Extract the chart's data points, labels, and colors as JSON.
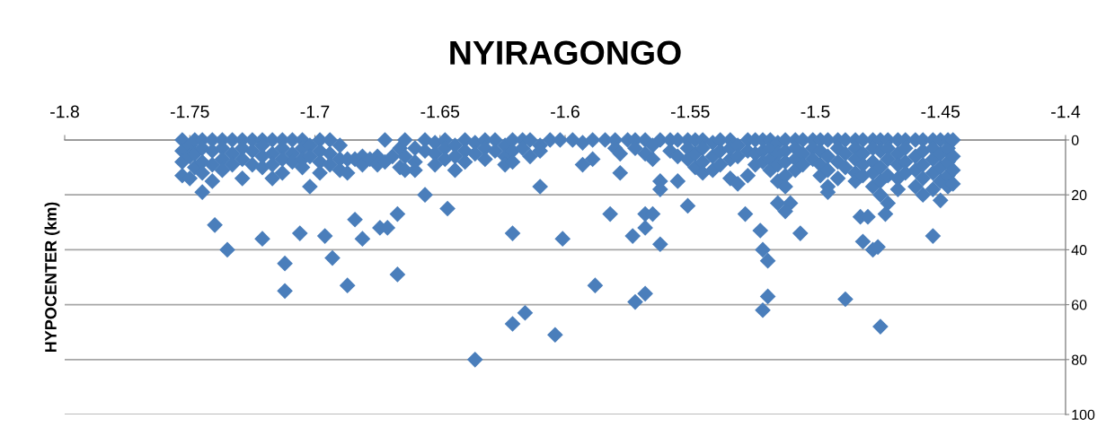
{
  "chart_data": {
    "type": "scatter",
    "title": "NYIRAGONGO",
    "ylabel": "HYPOCENTER (km)",
    "xlim": [
      -1.8,
      -1.4
    ],
    "xticks": [
      -1.8,
      -1.75,
      -1.7,
      -1.65,
      -1.6,
      -1.55,
      -1.5,
      -1.45,
      -1.4
    ],
    "ylim": [
      100,
      0
    ],
    "yticks": [
      0,
      20,
      40,
      60,
      80,
      100
    ],
    "grid": "y",
    "marker": "diamond",
    "x": [
      -1.753,
      -1.753,
      -1.753,
      -1.753,
      -1.75,
      -1.75,
      -1.75,
      -1.748,
      -1.748,
      -1.748,
      -1.745,
      -1.745,
      -1.745,
      -1.745,
      -1.745,
      -1.741,
      -1.741,
      -1.741,
      -1.741,
      -1.737,
      -1.737,
      -1.737,
      -1.737,
      -1.733,
      -1.733,
      -1.733,
      -1.729,
      -1.729,
      -1.729,
      -1.729,
      -1.725,
      -1.725,
      -1.725,
      -1.721,
      -1.721,
      -1.721,
      -1.721,
      -1.717,
      -1.717,
      -1.717,
      -1.717,
      -1.713,
      -1.713,
      -1.713,
      -1.713,
      -1.709,
      -1.709,
      -1.709,
      -1.705,
      -1.705,
      -1.705,
      -1.705,
      -1.702,
      -1.702,
      -1.702,
      -1.698,
      -1.698,
      -1.698,
      -1.698,
      -1.694,
      -1.694,
      -1.694,
      -1.69,
      -1.69,
      -1.69,
      -1.687,
      -1.687,
      -1.684,
      -1.681,
      -1.681,
      -1.678,
      -1.675,
      -1.675,
      -1.672,
      -1.672,
      -1.669,
      -1.666,
      -1.666,
      -1.664,
      -1.664,
      -1.664,
      -1.66,
      -1.66,
      -1.66,
      -1.656,
      -1.656,
      -1.656,
      -1.652,
      -1.652,
      -1.652,
      -1.648,
      -1.648,
      -1.648,
      -1.644,
      -1.644,
      -1.644,
      -1.64,
      -1.64,
      -1.64,
      -1.636,
      -1.636,
      -1.632,
      -1.632,
      -1.632,
      -1.628,
      -1.628,
      -1.624,
      -1.624,
      -1.624,
      -1.621,
      -1.621,
      -1.621,
      -1.617,
      -1.617,
      -1.614,
      -1.614,
      -1.61,
      -1.61,
      -1.61,
      -1.606,
      -1.602,
      -1.597,
      -1.593,
      -1.593,
      -1.589,
      -1.589,
      -1.584,
      -1.58,
      -1.58,
      -1.578,
      -1.578,
      -1.575,
      -1.572,
      -1.572,
      -1.568,
      -1.568,
      -1.565,
      -1.565,
      -1.562,
      -1.562,
      -1.562,
      -1.558,
      -1.558,
      -1.555,
      -1.555,
      -1.555,
      -1.551,
      -1.551,
      -1.551,
      -1.548,
      -1.548,
      -1.548,
      -1.545,
      -1.545,
      -1.545,
      -1.545,
      -1.541,
      -1.541,
      -1.541,
      -1.538,
      -1.538,
      -1.538,
      -1.534,
      -1.534,
      -1.534,
      -1.534,
      -1.531,
      -1.531,
      -1.531,
      -1.527,
      -1.527,
      -1.527,
      -1.524,
      -1.524,
      -1.524,
      -1.521,
      -1.521,
      -1.521,
      -1.518,
      -1.518,
      -1.518,
      -1.518,
      -1.515,
      -1.515,
      -1.515,
      -1.515,
      -1.512,
      -1.512,
      -1.512,
      -1.512,
      -1.512,
      -1.508,
      -1.508,
      -1.508,
      -1.508,
      -1.505,
      -1.505,
      -1.505,
      -1.501,
      -1.501,
      -1.501,
      -1.498,
      -1.498,
      -1.498,
      -1.498,
      -1.495,
      -1.495,
      -1.495,
      -1.495,
      -1.495,
      -1.491,
      -1.491,
      -1.491,
      -1.491,
      -1.488,
      -1.488,
      -1.488,
      -1.484,
      -1.484,
      -1.484,
      -1.484,
      -1.484,
      -1.481,
      -1.481,
      -1.481,
      -1.481,
      -1.477,
      -1.477,
      -1.477,
      -1.477,
      -1.477,
      -1.474,
      -1.474,
      -1.474,
      -1.474,
      -1.474,
      -1.471,
      -1.471,
      -1.471,
      -1.471,
      -1.471,
      -1.467,
      -1.467,
      -1.467,
      -1.467,
      -1.467,
      -1.464,
      -1.464,
      -1.464,
      -1.464,
      -1.46,
      -1.46,
      -1.46,
      -1.46,
      -1.457,
      -1.457,
      -1.457,
      -1.457,
      -1.457,
      -1.453,
      -1.453,
      -1.453,
      -1.453,
      -1.453,
      -1.45,
      -1.45,
      -1.45,
      -1.45,
      -1.45,
      -1.447,
      -1.447,
      -1.447,
      -1.447,
      -1.447,
      -1.445,
      -1.445,
      -1.445,
      -1.445,
      -1.74,
      -1.735,
      -1.721,
      -1.712,
      -1.712,
      -1.706,
      -1.696,
      -1.693,
      -1.687,
      -1.684,
      -1.681,
      -1.674,
      -1.671,
      -1.667,
      -1.667,
      -1.647,
      -1.636,
      -1.621,
      -1.616,
      -1.621,
      -1.604,
      -1.601,
      -1.588,
      -1.582,
      -1.568,
      -1.565,
      -1.568,
      -1.573,
      -1.562,
      -1.551,
      -1.528,
      -1.515,
      -1.51,
      -1.512,
      -1.522,
      -1.506,
      -1.521,
      -1.519,
      -1.572,
      -1.568,
      -1.519,
      -1.521,
      -1.488,
      -1.474,
      -1.482,
      -1.479,
      -1.472,
      -1.481,
      -1.477,
      -1.475,
      -1.453
    ],
    "series": [
      {
        "color": "#4a7ebb",
        "values": [
          0,
          4,
          8,
          13,
          2,
          6,
          14,
          0,
          5,
          10,
          0,
          3,
          8,
          12,
          19,
          0,
          4,
          9,
          15,
          0,
          3,
          7,
          11,
          0,
          5,
          9,
          0,
          3,
          7,
          14,
          0,
          4,
          9,
          0,
          2,
          6,
          10,
          0,
          5,
          9,
          14,
          0,
          3,
          7,
          12,
          0,
          5,
          8,
          0,
          3,
          7,
          10,
          2,
          6,
          17,
          0,
          4,
          8,
          12,
          0,
          5,
          9,
          2,
          7,
          11,
          7,
          12,
          7,
          6,
          9,
          7,
          6,
          9,
          0,
          8,
          6,
          3,
          10,
          0,
          6,
          11,
          3,
          8,
          11,
          0,
          4,
          20,
          1,
          5,
          9,
          0,
          3,
          7,
          2,
          6,
          11,
          0,
          4,
          8,
          1,
          5,
          0,
          3,
          7,
          0,
          4,
          2,
          6,
          9,
          0,
          4,
          8,
          0,
          3,
          0,
          6,
          2,
          4,
          17,
          0,
          0,
          0,
          1,
          9,
          0,
          7,
          0,
          0,
          3,
          5,
          12,
          0,
          0,
          3,
          0,
          5,
          2,
          7,
          0,
          15,
          18,
          0,
          4,
          0,
          6,
          15,
          0,
          3,
          7,
          0,
          5,
          10,
          0,
          3,
          8,
          12,
          1,
          6,
          11,
          0,
          4,
          9,
          0,
          3,
          7,
          14,
          2,
          6,
          16,
          0,
          4,
          13,
          0,
          5,
          9,
          0,
          4,
          8,
          0,
          3,
          7,
          11,
          1,
          5,
          9,
          15,
          0,
          4,
          8,
          13,
          17,
          0,
          3,
          7,
          11,
          0,
          5,
          9,
          0,
          3,
          7,
          0,
          4,
          9,
          13,
          0,
          6,
          11,
          17,
          19,
          0,
          3,
          8,
          14,
          0,
          5,
          10,
          0,
          3,
          7,
          12,
          15,
          0,
          5,
          9,
          13,
          0,
          3,
          8,
          12,
          17,
          0,
          4,
          10,
          15,
          20,
          0,
          3,
          7,
          13,
          23,
          0,
          5,
          9,
          14,
          18,
          0,
          3,
          8,
          12,
          0,
          6,
          11,
          17,
          0,
          4,
          9,
          14,
          20,
          0,
          3,
          7,
          12,
          18,
          0,
          5,
          10,
          15,
          22,
          0,
          3,
          8,
          13,
          17,
          0,
          6,
          11,
          16,
          31,
          40,
          36,
          45,
          55,
          34,
          35,
          43,
          53,
          29,
          36,
          32,
          32,
          27,
          49,
          25,
          80,
          34,
          63,
          67,
          71,
          36,
          53,
          27,
          27,
          27,
          32,
          35,
          38,
          24,
          27,
          23,
          23,
          26,
          33,
          34,
          40,
          44,
          59,
          56,
          57,
          62,
          58,
          68,
          28,
          28,
          27,
          37,
          40,
          39,
          35
        ]
      }
    ]
  }
}
